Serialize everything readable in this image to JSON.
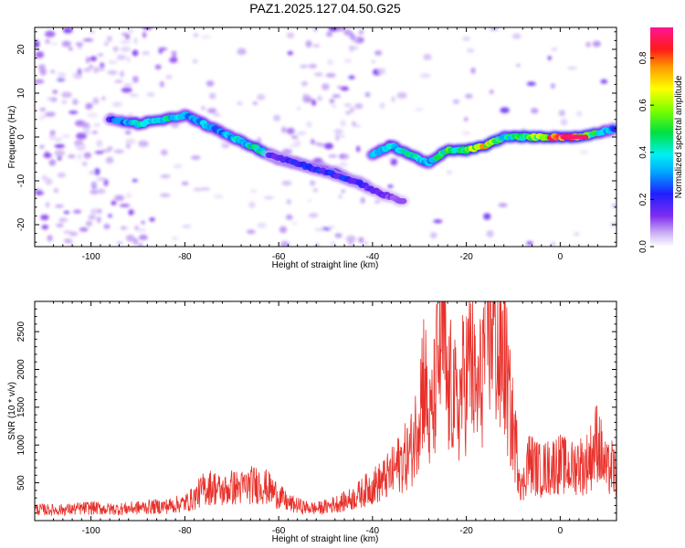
{
  "title": "PAZ1.2025.127.04.50.G25",
  "chart_data": [
    {
      "type": "heatmap",
      "xlabel": "Height of straight line (km)",
      "ylabel": "Frequency (Hz)",
      "xlim": [
        -112,
        12
      ],
      "ylim": [
        -25,
        25
      ],
      "xticks": [
        -100,
        -80,
        -60,
        -40,
        -20,
        0
      ],
      "yticks": [
        -20,
        -10,
        0,
        10,
        20
      ],
      "colorbar": {
        "label": "Normalized spectral amplitude",
        "ticks": [
          0.0,
          0.2,
          0.4,
          0.6,
          0.8
        ],
        "range": [
          0,
          0.93
        ],
        "colormap": "rainbow (white-violet-blue-cyan-green-yellow-red-magenta)"
      },
      "ridges": [
        {
          "x": [
            -96,
            -90,
            -84,
            -80,
            -76,
            -72,
            -68,
            -64,
            -60,
            -56,
            -52,
            -48,
            -44,
            -41
          ],
          "y": [
            4,
            3,
            4,
            5,
            3,
            1,
            -1,
            -3,
            -5,
            -6,
            -7,
            -8,
            -10,
            -11
          ],
          "amp": [
            0.2,
            0.4,
            0.4,
            0.3,
            0.35,
            0.3,
            0.35,
            0.45,
            0.3,
            0.25,
            0.2,
            0.2,
            0.15,
            0.15
          ]
        },
        {
          "x": [
            -62,
            -56,
            -50,
            -44,
            -38,
            -33
          ],
          "y": [
            -4,
            -6,
            -8,
            -10,
            -13,
            -15
          ],
          "amp": [
            0.15,
            0.2,
            0.2,
            0.2,
            0.15,
            0.1
          ]
        },
        {
          "x": [
            -40,
            -36,
            -32,
            -28,
            -24,
            -20,
            -16,
            -12,
            -8,
            -4,
            0,
            4,
            8,
            12
          ],
          "y": [
            -4,
            -2,
            -4,
            -6,
            -3,
            -3,
            -2,
            0,
            0,
            0,
            0,
            0,
            1,
            2
          ],
          "amp": [
            0.3,
            0.35,
            0.4,
            0.35,
            0.45,
            0.5,
            0.7,
            0.4,
            0.5,
            0.55,
            0.9,
            0.6,
            0.4,
            0.25
          ]
        }
      ]
    },
    {
      "type": "line",
      "xlabel": "Height of straight line (km)",
      "ylabel": "SNR (10 * v/v)",
      "xlim": [
        -112,
        12
      ],
      "ylim": [
        0,
        2900
      ],
      "xticks": [
        -100,
        -80,
        -60,
        -40,
        -20,
        0
      ],
      "yticks": [
        500,
        1000,
        1500,
        2000,
        2500
      ],
      "series": [
        {
          "color": "#e8302a",
          "x": [
            -112,
            -108,
            -104,
            -100,
            -96,
            -92,
            -88,
            -84,
            -80,
            -78,
            -76,
            -74,
            -72,
            -70,
            -68,
            -66,
            -64,
            -62,
            -60,
            -58,
            -56,
            -54,
            -52,
            -50,
            -48,
            -46,
            -44,
            -42,
            -40,
            -38,
            -36,
            -34,
            -32,
            -31,
            -30,
            -29,
            -28,
            -27,
            -26,
            -25,
            -24,
            -23,
            -22,
            -21,
            -20,
            -19,
            -18,
            -17,
            -16,
            -15,
            -14,
            -13,
            -12,
            -11,
            -10,
            -9,
            -8,
            -7,
            -6,
            -5,
            -4,
            -3,
            -2,
            -1,
            0,
            1,
            2,
            3,
            4,
            5,
            6,
            7,
            8,
            9,
            10,
            11,
            12
          ],
          "y": [
            150,
            140,
            150,
            170,
            150,
            160,
            180,
            190,
            230,
            300,
            420,
            450,
            380,
            440,
            430,
            470,
            480,
            420,
            330,
            230,
            200,
            170,
            160,
            180,
            220,
            250,
            300,
            380,
            460,
            520,
            620,
            780,
            900,
            1100,
            1550,
            2000,
            1200,
            1500,
            2150,
            2500,
            1600,
            1800,
            1400,
            1750,
            1900,
            2200,
            1600,
            1800,
            2400,
            2700,
            2650,
            2000,
            2300,
            1600,
            1200,
            800,
            400,
            800,
            750,
            700,
            650,
            700,
            700,
            760,
            750,
            720,
            680,
            700,
            780,
            700,
            800,
            900,
            1100,
            800,
            650,
            700,
            600
          ]
        }
      ]
    }
  ]
}
